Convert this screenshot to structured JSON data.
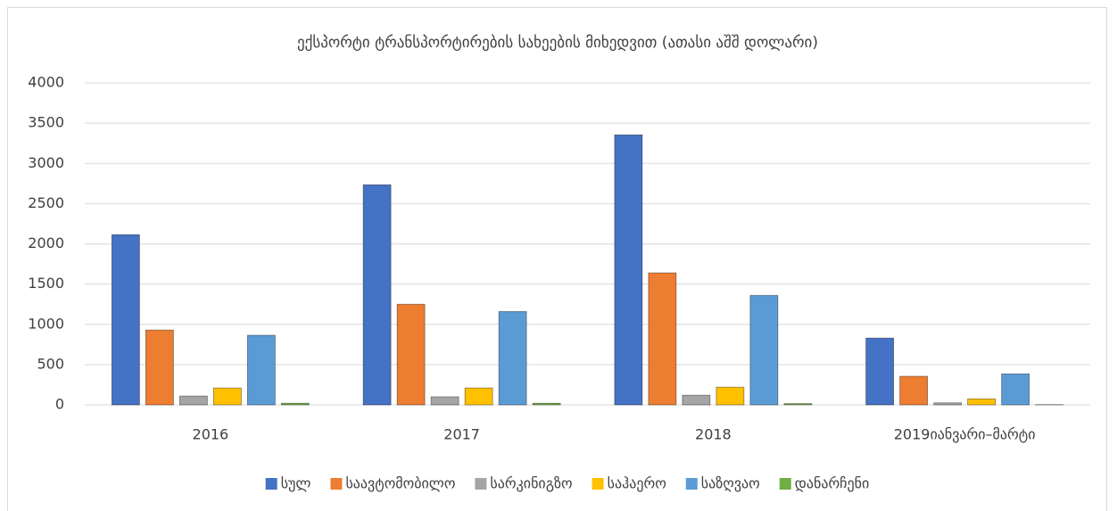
{
  "chart_data": {
    "type": "bar",
    "title": "ექსპორტი ტრანსპორტირების სახეების მიხედვით (ათასი აშშ დოლარი)",
    "categories": [
      "2016",
      "2017",
      "2018",
      "2019იანვარი–მარტი"
    ],
    "series": [
      {
        "name": "სულ",
        "color": "#4472c4",
        "values": [
          2115,
          2735,
          3355,
          830
        ]
      },
      {
        "name": "საავტომობილო",
        "color": "#ed7d31",
        "values": [
          930,
          1250,
          1640,
          355
        ]
      },
      {
        "name": "სარკინიგზო",
        "color": "#a5a5a5",
        "values": [
          110,
          100,
          120,
          25
        ]
      },
      {
        "name": "საჰაერო",
        "color": "#ffc000",
        "values": [
          210,
          210,
          220,
          75
        ]
      },
      {
        "name": "საზღვაო",
        "color": "#5b9bd5",
        "values": [
          865,
          1160,
          1360,
          385
        ]
      },
      {
        "name": "დანარჩენი",
        "color": "#70ad47",
        "values": [
          20,
          20,
          15,
          3
        ]
      }
    ],
    "ylim": [
      0,
      4000
    ],
    "yticks": [
      0,
      500,
      1000,
      1500,
      2000,
      2500,
      3000,
      3500,
      4000
    ],
    "grid": true,
    "legend": "bottom"
  }
}
